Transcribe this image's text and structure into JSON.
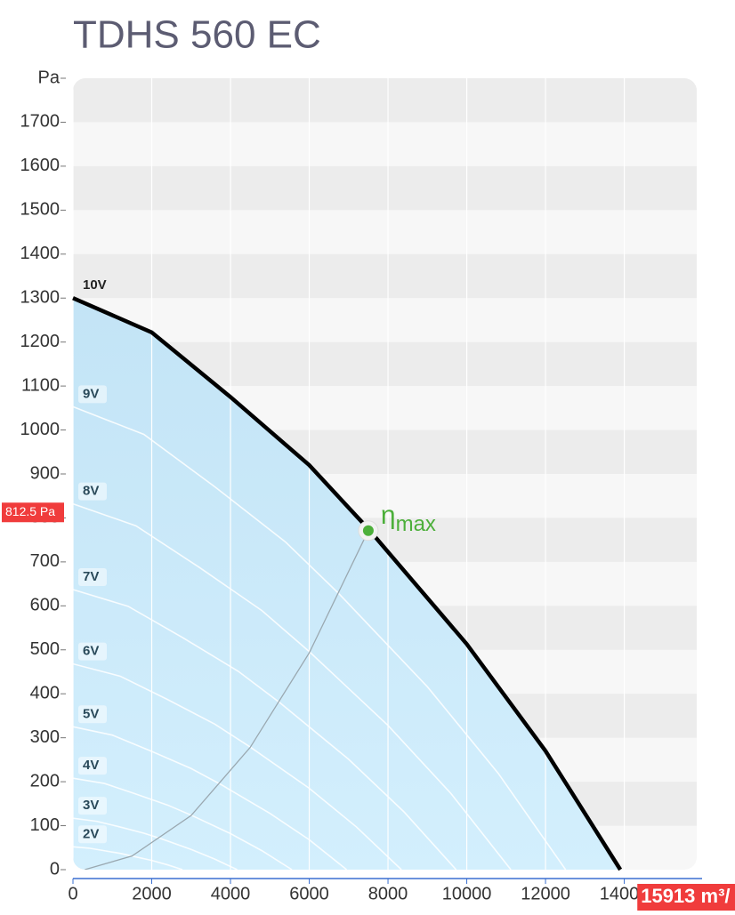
{
  "chart_data": {
    "type": "line",
    "title": "TDHS 560 EC",
    "xlim": [
      0,
      15840
    ],
    "ylim": [
      0,
      1800
    ],
    "xticks": [
      0,
      2000,
      4000,
      6000,
      8000,
      10000,
      12000,
      14000
    ],
    "yticks": [
      0,
      100,
      200,
      300,
      400,
      500,
      600,
      700,
      800,
      900,
      1000,
      1100,
      1200,
      1300,
      1400,
      1500,
      1600,
      1700,
      {
        "value": 1800,
        "label": "Pa"
      }
    ],
    "grid": true,
    "series": [
      {
        "name": "10V",
        "color": "#000000",
        "x": [
          0,
          2000,
          4000,
          6000,
          7500,
          10000,
          12000,
          13900
        ],
        "values": [
          1300,
          1222,
          1075,
          920,
          775,
          513,
          270,
          0
        ]
      },
      {
        "name": "9V",
        "color": "#ffffff",
        "x": [
          0,
          1800,
          3600,
          5400,
          6750,
          9000,
          10800,
          12510
        ],
        "values": [
          1053,
          990,
          871,
          745,
          628,
          416,
          219,
          0
        ]
      },
      {
        "name": "8V",
        "color": "#ffffff",
        "x": [
          0,
          1600,
          3200,
          4800,
          6000,
          8000,
          9600,
          11120
        ],
        "values": [
          832,
          782,
          688,
          589,
          496,
          328,
          173,
          0
        ]
      },
      {
        "name": "7V",
        "color": "#ffffff",
        "x": [
          0,
          1400,
          2800,
          4200,
          5250,
          7000,
          8400,
          9730
        ],
        "values": [
          637,
          599,
          527,
          451,
          380,
          251,
          132,
          0
        ]
      },
      {
        "name": "6V",
        "color": "#ffffff",
        "x": [
          0,
          1200,
          2400,
          3600,
          4500,
          6000,
          7200,
          8340
        ],
        "values": [
          468,
          440,
          387,
          331,
          279,
          185,
          97,
          0
        ]
      },
      {
        "name": "5V",
        "color": "#ffffff",
        "x": [
          0,
          1000,
          2000,
          3000,
          3750,
          5000,
          6000,
          6950
        ],
        "values": [
          325,
          306,
          269,
          230,
          194,
          128,
          68,
          0
        ]
      },
      {
        "name": "4V",
        "color": "#ffffff",
        "x": [
          0,
          800,
          1600,
          2400,
          3000,
          4000,
          4800,
          5560
        ],
        "values": [
          208,
          196,
          172,
          147,
          124,
          82,
          43,
          0
        ]
      },
      {
        "name": "3V",
        "color": "#ffffff",
        "x": [
          0,
          600,
          1200,
          1800,
          2250,
          3000,
          3600,
          4170
        ],
        "values": [
          117,
          110,
          97,
          83,
          70,
          46,
          24,
          0
        ]
      },
      {
        "name": "2V",
        "color": "#ffffff",
        "x": [
          0,
          400,
          800,
          1200,
          1500,
          2000,
          2400,
          2780
        ],
        "values": [
          52,
          49,
          43,
          37,
          31,
          21,
          11,
          0
        ]
      }
    ],
    "efficiency_line": {
      "color": "#9aa8b0",
      "x": [
        300,
        1500,
        3000,
        4500,
        6000,
        7500
      ],
      "values": [
        0,
        31,
        123,
        278,
        493,
        771
      ]
    },
    "annotation": {
      "symbol": "η",
      "subscript": "max",
      "color": "#4caf3a",
      "x": 7500,
      "y": 771
    },
    "crosshair": {
      "y": 812.5,
      "y_label": "812.5 Pa",
      "x": 15913,
      "x_label": "15913 m³/",
      "color": "#f03c3c"
    }
  }
}
